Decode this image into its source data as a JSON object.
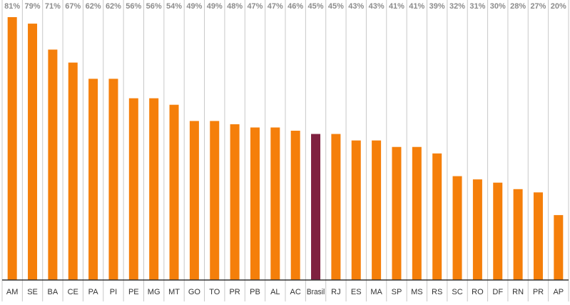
{
  "chart_data": {
    "type": "bar",
    "categories": [
      "AM",
      "SE",
      "BA",
      "CE",
      "PA",
      "PI",
      "PE",
      "MG",
      "MT",
      "GO",
      "TO",
      "PR",
      "PB",
      "AL",
      "AC",
      "Brasil",
      "RJ",
      "ES",
      "MA",
      "SP",
      "MS",
      "RS",
      "SC",
      "RO",
      "DF",
      "RN",
      "PR",
      "AP"
    ],
    "values": [
      81,
      79,
      71,
      67,
      62,
      62,
      56,
      56,
      54,
      49,
      49,
      48,
      47,
      47,
      46,
      45,
      45,
      43,
      43,
      41,
      41,
      39,
      32,
      31,
      30,
      28,
      27,
      20
    ],
    "value_labels": [
      "81%",
      "79%",
      "71%",
      "67%",
      "62%",
      "62%",
      "56%",
      "56%",
      "54%",
      "49%",
      "49%",
      "48%",
      "47%",
      "47%",
      "46%",
      "45%",
      "45%",
      "43%",
      "43%",
      "41%",
      "41%",
      "39%",
      "32%",
      "31%",
      "30%",
      "28%",
      "27%",
      "20%"
    ],
    "colors": [
      "#f57f0a",
      "#f57f0a",
      "#f57f0a",
      "#f57f0a",
      "#f57f0a",
      "#f57f0a",
      "#f57f0a",
      "#f57f0a",
      "#f57f0a",
      "#f57f0a",
      "#f57f0a",
      "#f57f0a",
      "#f57f0a",
      "#f57f0a",
      "#f57f0a",
      "#7f2140",
      "#f57f0a",
      "#f57f0a",
      "#f57f0a",
      "#f57f0a",
      "#f57f0a",
      "#f57f0a",
      "#f57f0a",
      "#f57f0a",
      "#f57f0a",
      "#f57f0a",
      "#f57f0a",
      "#f57f0a"
    ]
  }
}
